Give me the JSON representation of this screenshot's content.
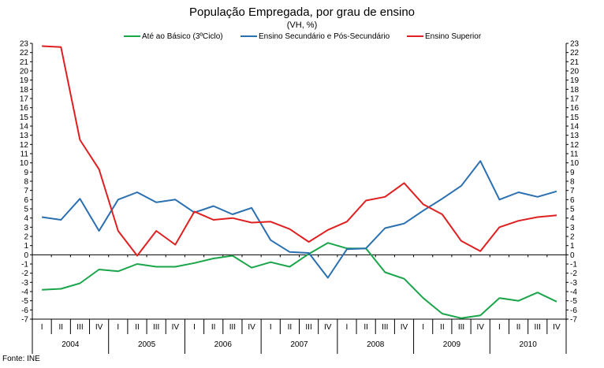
{
  "chart_data": {
    "type": "line",
    "title": "População Empregada, por grau de ensino",
    "subtitle": "(VH, %)",
    "ylim": [
      -7,
      23
    ],
    "ystep": 1,
    "yticks_left": true,
    "yticks_right": true,
    "legend_position": "top",
    "quarter_labels": [
      "I",
      "II",
      "III",
      "IV"
    ],
    "years": [
      "2004",
      "2005",
      "2006",
      "2007",
      "2008",
      "2009",
      "2010"
    ],
    "series": [
      {
        "name": "Até ao Básico (3ºCiclo)",
        "color": "#1aa54a",
        "values": [
          -3.8,
          -3.7,
          -3.1,
          -1.6,
          -1.8,
          -1.0,
          -1.3,
          -1.3,
          -0.9,
          -0.4,
          -0.1,
          -1.4,
          -0.8,
          -1.3,
          0.1,
          1.3,
          0.7,
          0.7,
          -1.9,
          -2.6,
          -4.7,
          -6.4,
          -6.9,
          -6.6,
          -4.7,
          -5.0,
          -4.1,
          -5.1
        ]
      },
      {
        "name": "Ensino Secundário e Pós-Secundário",
        "color": "#2a6fb0",
        "values": [
          4.1,
          3.8,
          6.1,
          2.6,
          6.0,
          6.8,
          5.7,
          6.0,
          4.6,
          5.3,
          4.4,
          5.1,
          1.6,
          0.3,
          0.2,
          -2.5,
          0.6,
          0.7,
          2.9,
          3.4,
          4.8,
          6.1,
          7.5,
          10.2,
          6.0,
          6.8,
          6.3,
          6.9
        ]
      },
      {
        "name": "Ensino Superior",
        "color": "#e02020",
        "values": [
          22.7,
          22.6,
          12.5,
          9.3,
          2.6,
          -0.1,
          2.6,
          1.1,
          4.7,
          3.8,
          4.0,
          3.5,
          3.6,
          2.8,
          1.4,
          2.7,
          3.6,
          5.9,
          6.3,
          7.8,
          5.5,
          4.4,
          1.5,
          0.4,
          3.0,
          3.7,
          4.1,
          4.3
        ]
      }
    ],
    "source": "Fonte: INE"
  }
}
